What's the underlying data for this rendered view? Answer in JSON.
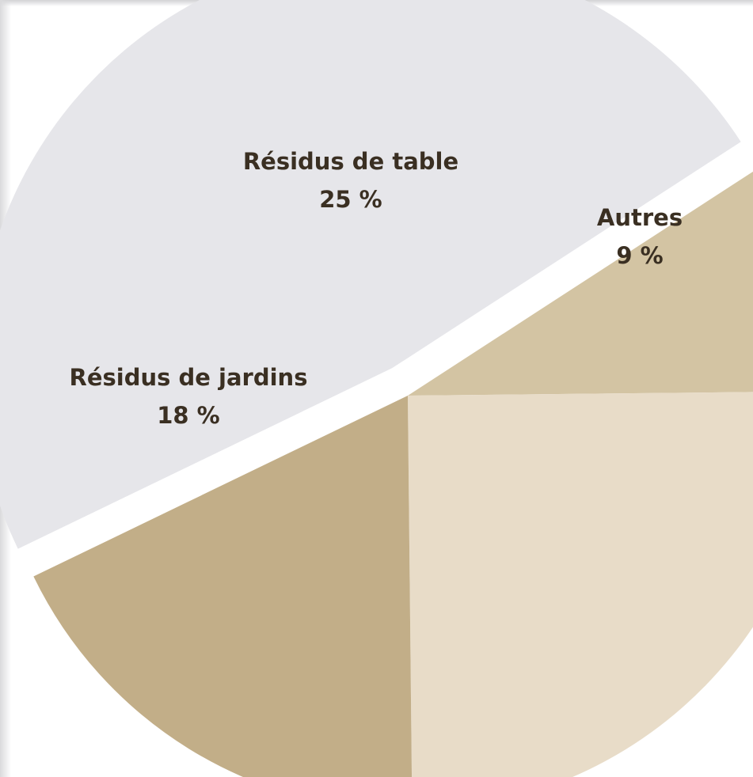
{
  "chart_data": {
    "type": "pie",
    "title": "",
    "slices": [
      {
        "label": "Autres",
        "value_text": "9 %",
        "value": 9,
        "color": "#d3c4a3",
        "exploded": false
      },
      {
        "label": "Résidus de table",
        "value_text": "25 %",
        "value": 25,
        "color": "#e8dcc8",
        "exploded": false
      },
      {
        "label": "Résidus de jardins",
        "value_text": "18 %",
        "value": 18,
        "color": "#c2ae88",
        "exploded": false
      },
      {
        "label": "",
        "value_text": "",
        "value": 48,
        "color": "#e6e6ea",
        "exploded": true
      }
    ]
  }
}
